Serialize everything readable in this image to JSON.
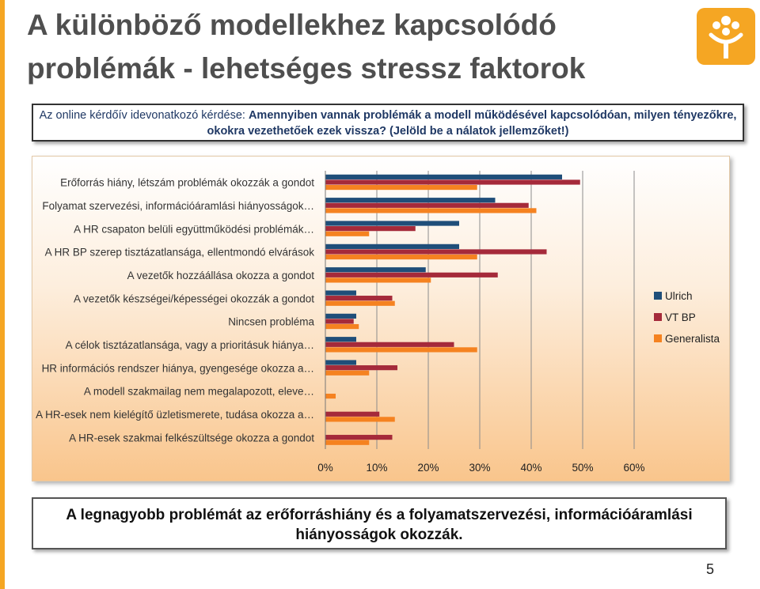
{
  "slide": {
    "title": "A különböző modellekhez kapcsolódó problémák - lehetséges stressz faktorok",
    "question_prefix": "Az online kérdőív idevonatkozó kérdése: ",
    "question_bold": "Amennyiben vannak problémák a modell működésével kapcsolódóan, milyen tényezőkre, okokra vezethetőek ezek vissza? (Jelöld be a nálatok jellemzőket!)",
    "conclusion": "A legnagyobb problémát  az erőforráshiány és a folyamatszervezési, információáramlási hiányosságok okozzák.",
    "page_number": "5"
  },
  "colors": {
    "accent": "#f5a623",
    "ulrich": "#1f4e79",
    "vtbp": "#a52a3a",
    "generalista": "#f58220"
  },
  "chart_data": {
    "type": "bar",
    "orientation": "horizontal",
    "categories": [
      "Erőforrás hiány, létszám problémák okozzák a gondot",
      "Folyamat szervezési, információáramlási hiányosságok…",
      "A HR csapaton belüli együttműködési problémák…",
      "A HR BP szerep tisztázatlansága, ellentmondó elvárások",
      "A vezetők hozzáállása okozza a gondot",
      "A vezetők készségei/képességei okozzák a gondot",
      "Nincsen probléma",
      "A célok tisztázatlansága, vagy a prioritásuk hiánya…",
      "HR információs rendszer hiánya, gyengesége okozza a…",
      "A modell szakmailag nem megalapozott, eleve…",
      "A HR-esek nem kielégítő üzletismerete, tudása okozza a…",
      "A HR-esek szakmai felkészültsége okozza a gondot"
    ],
    "series": [
      {
        "name": "Ulrich",
        "values": [
          46,
          33,
          26,
          26,
          19.5,
          6,
          6,
          6,
          6,
          0,
          0,
          0
        ]
      },
      {
        "name": "VT BP",
        "values": [
          49.5,
          39.5,
          17.5,
          43,
          33.5,
          13,
          5.5,
          25,
          14,
          0,
          10.5,
          13
        ]
      },
      {
        "name": "Generalista",
        "values": [
          29.5,
          41,
          8.5,
          29.5,
          20.5,
          13.5,
          6.5,
          29.5,
          8.5,
          2,
          13.5,
          8.5
        ]
      }
    ],
    "xlim": [
      0,
      60
    ],
    "xticks": [
      "0%",
      "10%",
      "20%",
      "30%",
      "40%",
      "50%",
      "60%"
    ],
    "grid": true,
    "legend_position": "right"
  }
}
